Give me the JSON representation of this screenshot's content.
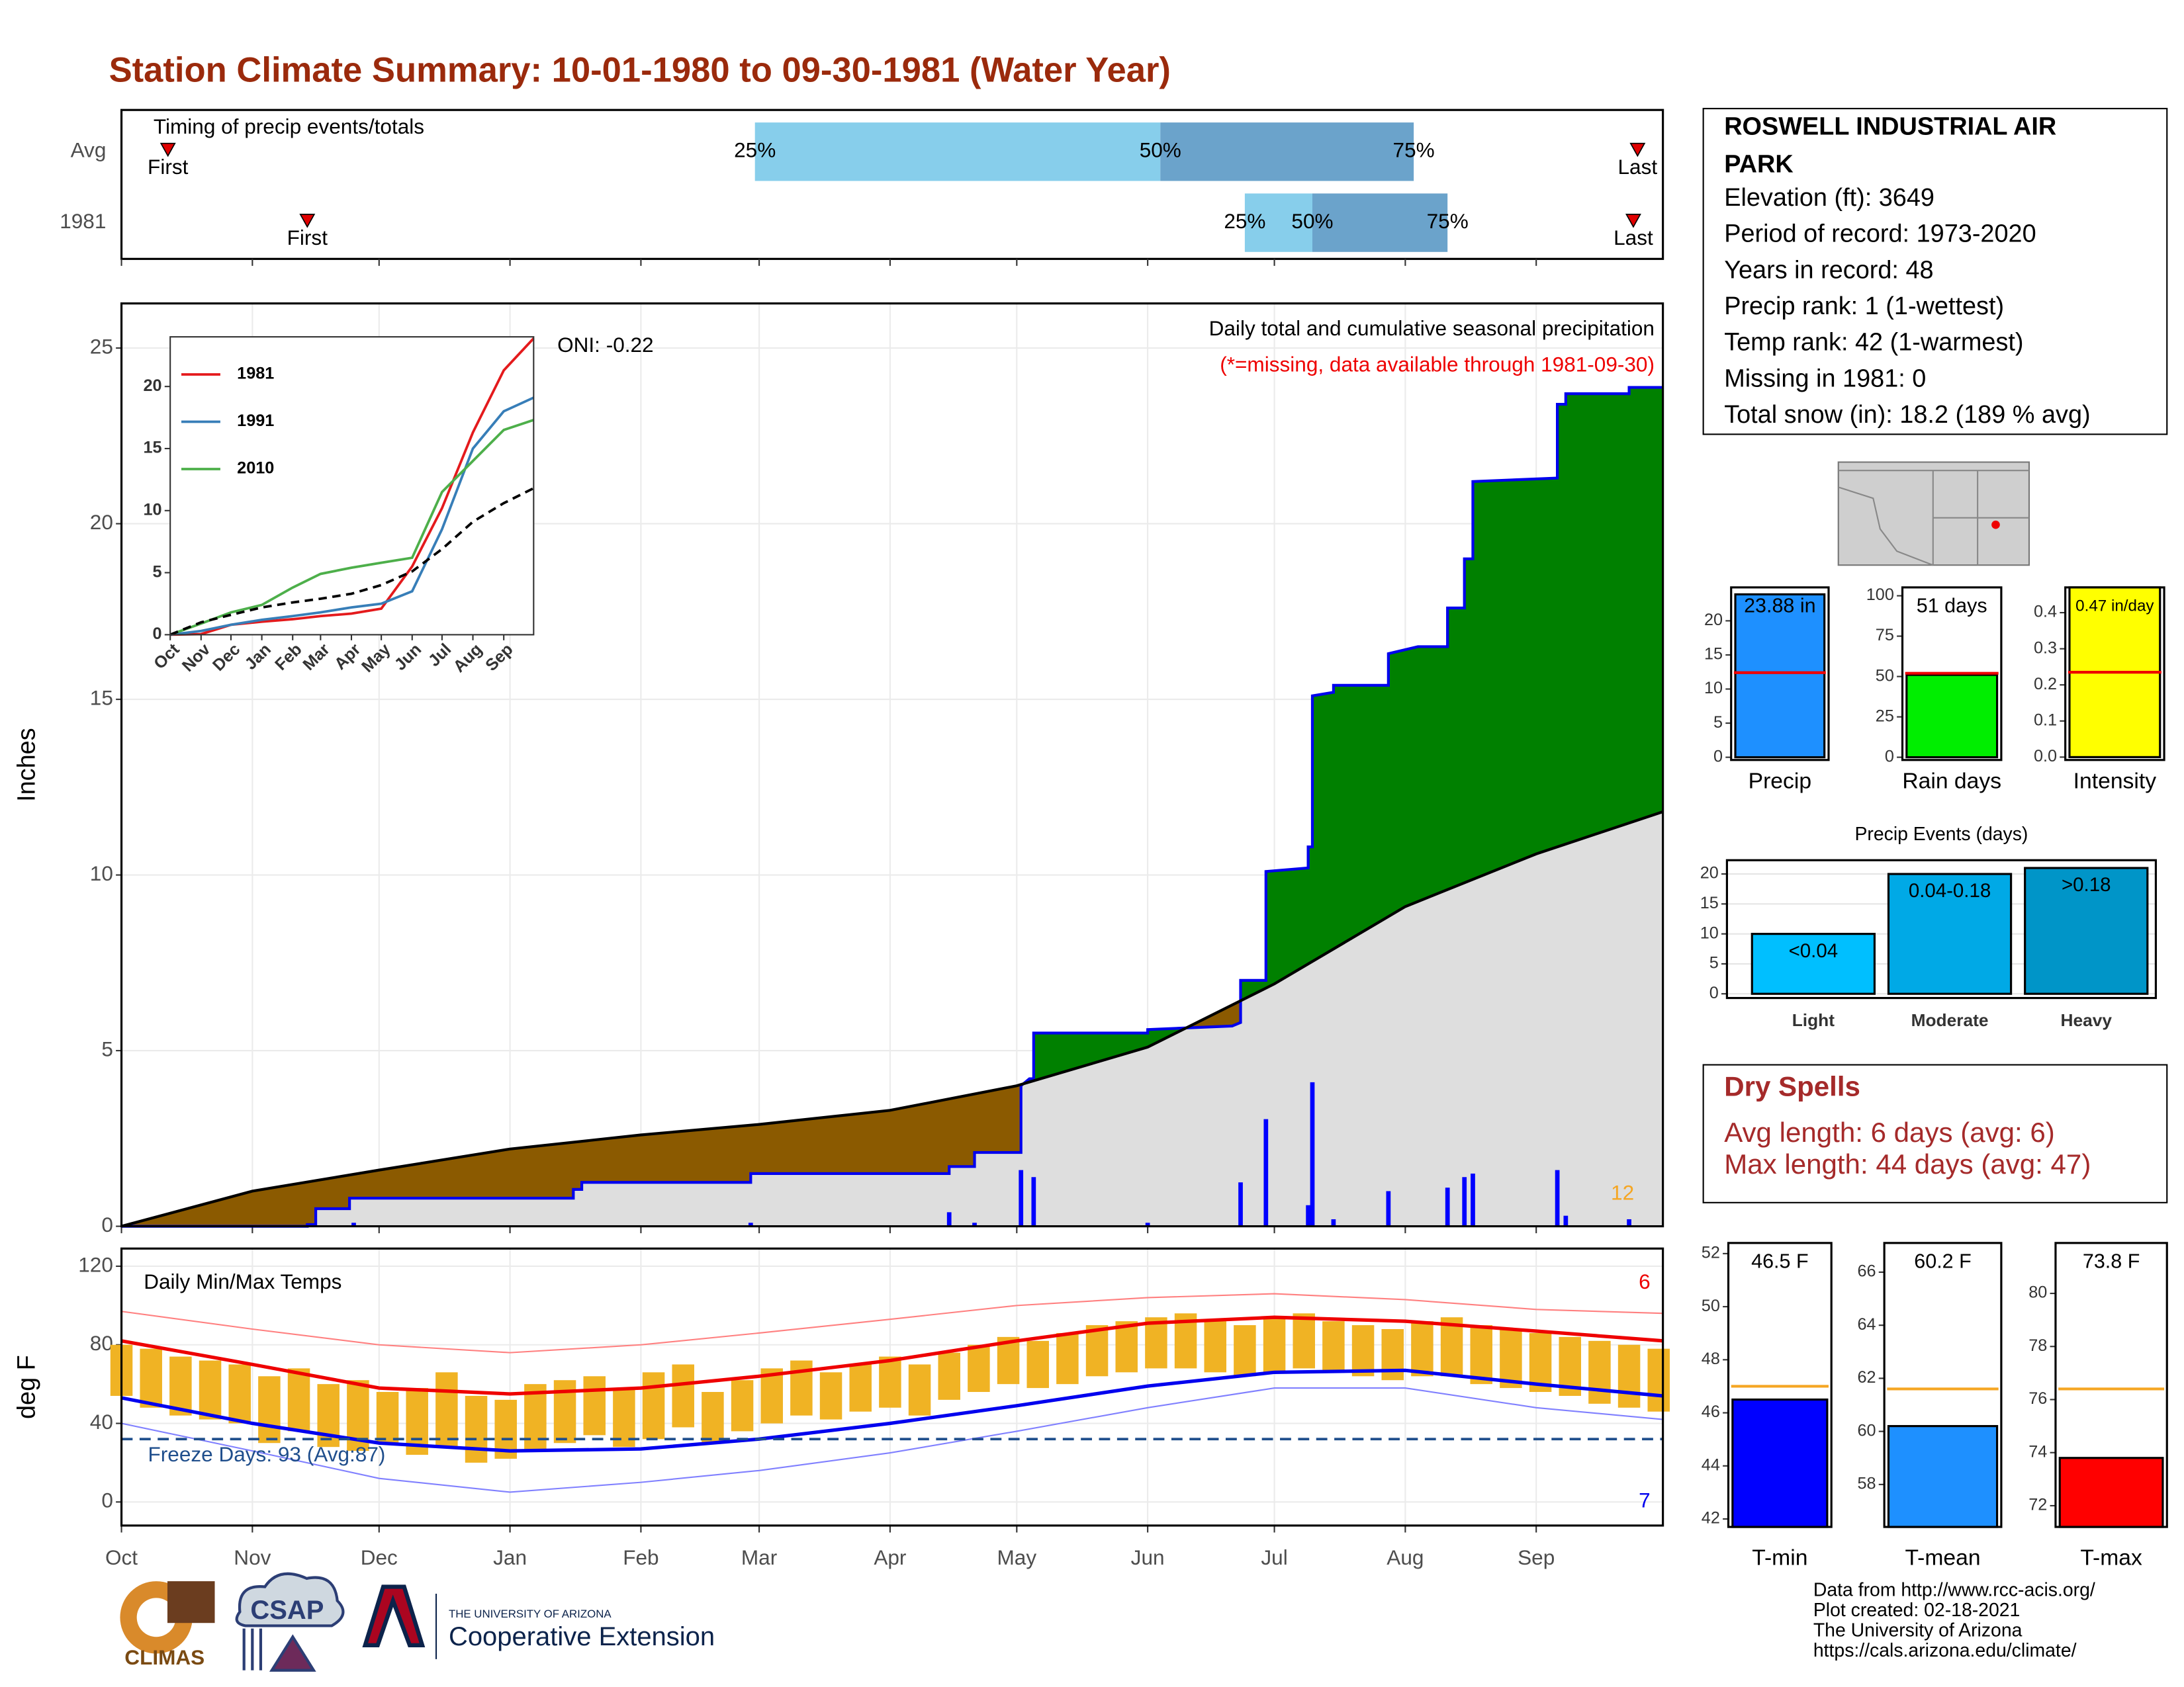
{
  "title": "Station Climate Summary: 10-01-1980 to 09-30-1981 (Water Year)",
  "station": {
    "name_lines": [
      "ROSWELL INDUSTRIAL AIR",
      "PARK"
    ],
    "lines": [
      "Elevation (ft): 3649",
      "Period of record: 1973-2020",
      "Years in record: 48",
      "Precip rank: 1 (1-wettest)",
      "Temp rank: 42 (1-warmest)",
      "Missing in 1981: 0",
      "Total snow (in): 18.2 (189 % avg)"
    ]
  },
  "dry_spells": {
    "title": "Dry Spells",
    "lines": [
      "Avg length: 6 days (avg: 6)",
      "Max length: 44 days (avg: 47)"
    ]
  },
  "footer": [
    "Data from http://www.rcc-acis.org/",
    "Plot created: 02-18-2021",
    "The University of Arizona",
    "https://cals.arizona.edu/climate/"
  ],
  "logos": {
    "climas": "CLIMAS",
    "csap": "CSAP",
    "university": "THE UNIVERSITY OF ARIZONA",
    "extension": "Cooperative Extension"
  },
  "chart_data": [
    {
      "type": "timing",
      "title": "Timing of precip events/totals",
      "categories": [
        "Avg",
        "1981"
      ],
      "first": [
        11,
        44
      ],
      "q25": [
        150,
        266
      ],
      "q50": [
        246,
        282
      ],
      "q75": [
        306,
        314
      ],
      "last": [
        359,
        358
      ],
      "bar_labels": [
        "25%",
        "50%",
        "75%"
      ],
      "first_label": "First",
      "last_label": "Last",
      "colors": [
        "#87ceeb",
        "#6ba3cb"
      ],
      "marker_color": "#e00000",
      "xlim": [
        0,
        365
      ],
      "xticks": [
        0,
        31,
        61,
        92,
        123,
        151,
        182,
        212,
        243,
        273,
        304,
        335
      ]
    },
    {
      "type": "cumulative",
      "title": "Daily total and cumulative seasonal precipitation",
      "subtitle": "(*=missing, data available through 1981-09-30)",
      "oni": "ONI: -0.22",
      "annotation": 12,
      "y_label": "Inches",
      "xlim": [
        0,
        365
      ],
      "xticks": [
        0,
        31,
        61,
        92,
        123,
        151,
        182,
        212,
        243,
        273,
        304,
        335
      ],
      "ylim": [
        0,
        26.27
      ],
      "yticks": [
        0,
        5,
        10,
        15,
        20,
        25
      ],
      "grid": true,
      "fill_above": "#008000",
      "fill_below": "#8b5a00",
      "series": [
        {
          "color": "#0000ee",
          "x": [
            0,
            44,
            44,
            46,
            46,
            54,
            54,
            107,
            107,
            109,
            109,
            149,
            149,
            196,
            196,
            202,
            202,
            213,
            213,
            215,
            216,
            216,
            243,
            243,
            263,
            265,
            265,
            271,
            271,
            281,
            281,
            282,
            282,
            287,
            287,
            300,
            300,
            307,
            314,
            314,
            318,
            318,
            320,
            320,
            340,
            340,
            342,
            342,
            357,
            357,
            365
          ],
          "values": [
            0,
            0,
            0.05,
            0.05,
            0.5,
            0.5,
            0.8,
            0.8,
            1.05,
            1.05,
            1.25,
            1.25,
            1.5,
            1.5,
            1.7,
            1.7,
            2.1,
            2.1,
            4.0,
            4.2,
            4.2,
            5.5,
            5.5,
            5.6,
            5.7,
            5.8,
            7.0,
            7.0,
            10.1,
            10.2,
            10.8,
            10.8,
            15.1,
            15.2,
            15.4,
            15.4,
            16.3,
            16.5,
            16.5,
            17.6,
            17.6,
            19.0,
            19.0,
            21.2,
            21.3,
            23.4,
            23.4,
            23.7,
            23.7,
            23.88,
            23.88
          ]
        },
        {
          "color": "#000000",
          "fill": "#dedede",
          "x": [
            0,
            31,
            61,
            92,
            123,
            151,
            182,
            212,
            243,
            273,
            304,
            335,
            365
          ],
          "values": [
            0,
            1.0,
            1.6,
            2.2,
            2.6,
            2.9,
            3.3,
            4.0,
            5.1,
            6.9,
            9.1,
            10.6,
            11.8
          ]
        }
      ],
      "bars": {
        "color": "#0000ff",
        "x": [
          55,
          149,
          196,
          202,
          213,
          216,
          243,
          265,
          271,
          281,
          282,
          287,
          300,
          314,
          318,
          320,
          340,
          342,
          357
        ],
        "values": [
          0.1,
          0.1,
          0.4,
          0.1,
          1.6,
          1.4,
          0.1,
          1.25,
          3.05,
          0.6,
          4.1,
          0.2,
          1.0,
          1.1,
          1.4,
          1.5,
          1.6,
          0.3,
          0.2
        ]
      }
    },
    {
      "type": "line",
      "xlim": [
        0,
        365
      ],
      "xticks": [
        {
          "value": 0,
          "label": "Oct"
        },
        {
          "value": 31,
          "label": "Nov"
        },
        {
          "value": 61,
          "label": "Dec"
        },
        {
          "value": 92,
          "label": "Jan"
        },
        {
          "value": 123,
          "label": "Feb"
        },
        {
          "value": 151,
          "label": "Mar"
        },
        {
          "value": 182,
          "label": "Apr"
        },
        {
          "value": 212,
          "label": "May"
        },
        {
          "value": 243,
          "label": "Jun"
        },
        {
          "value": 273,
          "label": "Jul"
        },
        {
          "value": 304,
          "label": "Aug"
        },
        {
          "value": 335,
          "label": "Sep"
        }
      ],
      "ylim": [
        0,
        24
      ],
      "yticks": [
        0,
        5,
        10,
        15,
        20
      ],
      "x": [
        0,
        31,
        61,
        92,
        123,
        151,
        182,
        212,
        243,
        273,
        304,
        335,
        365
      ],
      "series": [
        {
          "name": "1981",
          "color": "#e41a1c",
          "values": [
            0,
            0.05,
            0.8,
            1.05,
            1.25,
            1.5,
            1.7,
            2.1,
            5.5,
            10.2,
            16.3,
            21.3,
            23.88
          ]
        },
        {
          "name": "1991",
          "color": "#377eb8",
          "values": [
            0,
            0.3,
            0.8,
            1.2,
            1.5,
            1.8,
            2.2,
            2.5,
            3.5,
            8.5,
            15.0,
            18.0,
            19.1
          ]
        },
        {
          "name": "2010",
          "color": "#4daf4a",
          "values": [
            0,
            0.9,
            1.8,
            2.4,
            3.8,
            4.9,
            5.4,
            5.8,
            6.2,
            11.5,
            14.0,
            16.5,
            17.3
          ]
        },
        {
          "color": "#000000",
          "dashed": true,
          "values": [
            0,
            1.0,
            1.6,
            2.2,
            2.6,
            2.9,
            3.3,
            4.0,
            5.1,
            6.9,
            9.1,
            10.6,
            11.8
          ]
        }
      ]
    },
    {
      "type": "temps",
      "title": "Daily Min/Max Temps",
      "freeze_label": "Freeze Days: 93 (Avg:87)",
      "freeze_line": 32,
      "record_highs": 6,
      "record_lows": 7,
      "y_label": "deg F",
      "xlim": [
        0,
        365
      ],
      "xticks": [
        {
          "value": 0,
          "label": "Oct"
        },
        {
          "value": 31,
          "label": "Nov"
        },
        {
          "value": 61,
          "label": "Dec"
        },
        {
          "value": 92,
          "label": "Jan"
        },
        {
          "value": 123,
          "label": "Feb"
        },
        {
          "value": 151,
          "label": "Mar"
        },
        {
          "value": 182,
          "label": "Apr"
        },
        {
          "value": 212,
          "label": "May"
        },
        {
          "value": 243,
          "label": "Jun"
        },
        {
          "value": 273,
          "label": "Jul"
        },
        {
          "value": 304,
          "label": "Aug"
        },
        {
          "value": 335,
          "label": "Sep"
        }
      ],
      "ylim": [
        -12,
        129
      ],
      "yticks": [
        0,
        40,
        80,
        120
      ],
      "grid": true,
      "bars": {
        "color": "#f0b324",
        "x": [
          0,
          7,
          14,
          21,
          28,
          35,
          42,
          49,
          56,
          63,
          70,
          77,
          84,
          91,
          98,
          105,
          112,
          119,
          126,
          133,
          140,
          147,
          154,
          161,
          168,
          175,
          182,
          189,
          196,
          203,
          210,
          217,
          224,
          231,
          238,
          245,
          252,
          259,
          266,
          273,
          280,
          287,
          294,
          301,
          308,
          315,
          322,
          329,
          336,
          343,
          350,
          357,
          364
        ],
        "max": [
          80,
          78,
          74,
          72,
          70,
          64,
          68,
          60,
          62,
          56,
          58,
          66,
          54,
          52,
          60,
          62,
          64,
          58,
          66,
          70,
          56,
          62,
          68,
          72,
          66,
          70,
          74,
          70,
          76,
          80,
          84,
          82,
          86,
          90,
          92,
          94,
          96,
          92,
          90,
          94,
          96,
          92,
          90,
          88,
          92,
          94,
          90,
          88,
          86,
          84,
          82,
          80,
          78
        ],
        "min": [
          54,
          48,
          44,
          42,
          40,
          30,
          36,
          28,
          26,
          30,
          24,
          28,
          20,
          22,
          26,
          30,
          34,
          28,
          32,
          38,
          30,
          36,
          40,
          44,
          42,
          46,
          48,
          44,
          52,
          56,
          60,
          58,
          60,
          64,
          66,
          68,
          68,
          66,
          64,
          66,
          68,
          66,
          64,
          62,
          64,
          64,
          60,
          58,
          56,
          54,
          50,
          48,
          46
        ]
      },
      "x": [
        0,
        31,
        61,
        92,
        123,
        151,
        182,
        212,
        243,
        273,
        304,
        335,
        365
      ],
      "series": [
        {
          "color": "#ff8080",
          "width": 1,
          "values": [
            97,
            88,
            80,
            76,
            80,
            86,
            93,
            100,
            104,
            106,
            103,
            98,
            96
          ]
        },
        {
          "color": "#8080ff",
          "width": 1,
          "values": [
            40,
            26,
            12,
            5,
            10,
            16,
            25,
            36,
            48,
            58,
            58,
            48,
            42
          ]
        },
        {
          "color": "#ee0000",
          "width": 2.5,
          "values": [
            82,
            70,
            58,
            55,
            58,
            64,
            72,
            82,
            91,
            94,
            92,
            87,
            82
          ]
        },
        {
          "color": "#0000ee",
          "width": 2.5,
          "values": [
            53,
            40,
            30,
            26,
            27,
            32,
            40,
            49,
            59,
            66,
            67,
            60,
            54
          ]
        }
      ],
      "freeze_color": "#1f4e8c",
      "high_color": "#ee0000",
      "low_color": "#0000ee"
    },
    {
      "type": "bar",
      "categories": [
        "Precip"
      ],
      "values": [
        23.88
      ],
      "value_labels": [
        "23.88 in"
      ],
      "colors": [
        "#1e90ff"
      ],
      "avg": 12.4,
      "avg_color": "#ee0000",
      "ylim": [
        -0.4,
        24.9
      ],
      "yticks": [
        0,
        5,
        10,
        15,
        20
      ]
    },
    {
      "type": "bar",
      "categories": [
        "Rain days"
      ],
      "values": [
        51
      ],
      "value_labels": [
        "51 days"
      ],
      "colors": [
        "#00ee00"
      ],
      "avg": 52,
      "avg_color": "#ee0000",
      "ylim": [
        -1.7,
        105.2
      ],
      "yticks": [
        0,
        25,
        50,
        75,
        100
      ]
    },
    {
      "type": "bar",
      "categories": [
        "Intensity"
      ],
      "values": [
        0.47
      ],
      "value_labels": [
        "0.47 in/day"
      ],
      "colors": [
        "#ffff00"
      ],
      "avg": 0.235,
      "avg_color": "#ee0000",
      "ylim": [
        -0.008,
        0.47
      ],
      "yticks": [
        {
          "value": 0,
          "label": "0.0"
        },
        0.1,
        0.2,
        0.3,
        0.4
      ]
    },
    {
      "type": "bar",
      "title": "Precip Events (days)",
      "categories": [
        "Light",
        "Moderate",
        "Heavy"
      ],
      "values": [
        10,
        20,
        21
      ],
      "bar_labels": [
        "<0.04",
        "0.04-0.18",
        ">0.18"
      ],
      "colors": [
        "#00bfff",
        "#00a9e6",
        "#0095c8"
      ],
      "ylim": [
        -0.7,
        22.3
      ],
      "yticks": [
        0,
        5,
        10,
        15,
        20
      ],
      "grid": true
    },
    {
      "type": "bar",
      "categories": [
        "T-min"
      ],
      "values": [
        46.5
      ],
      "value_labels": [
        "46.5 F"
      ],
      "colors": [
        "#0000ff"
      ],
      "avg": 47.0,
      "avg_color": "#f5a623",
      "ylim": [
        41.7,
        52.4
      ],
      "yticks": [
        42,
        44,
        46,
        48,
        50,
        52
      ]
    },
    {
      "type": "bar",
      "categories": [
        "T-mean"
      ],
      "values": [
        60.2
      ],
      "value_labels": [
        "60.2 F"
      ],
      "colors": [
        "#1e90ff"
      ],
      "avg": 61.6,
      "avg_color": "#f5a623",
      "ylim": [
        56.4,
        67.1
      ],
      "yticks": [
        58,
        60,
        62,
        64,
        66
      ]
    },
    {
      "type": "bar",
      "categories": [
        "T-max"
      ],
      "values": [
        73.8
      ],
      "value_labels": [
        "73.8 F"
      ],
      "colors": [
        "#ff0000"
      ],
      "avg": 76.4,
      "avg_color": "#f5a623",
      "ylim": [
        71.2,
        81.9
      ],
      "yticks": [
        72,
        74,
        76,
        78,
        80
      ]
    }
  ]
}
